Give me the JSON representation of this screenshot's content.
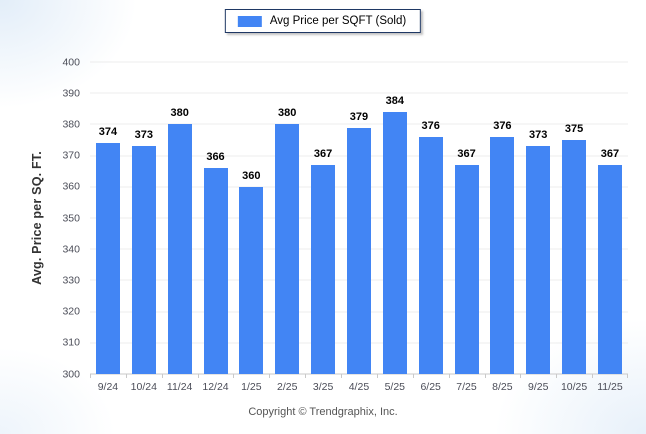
{
  "legend": {
    "label": "Avg Price per SQFT (Sold)",
    "swatch_color": "#4285f4",
    "border_color": "#1f3864"
  },
  "footer": {
    "text": "Copyright © Trendgraphix, Inc."
  },
  "colors": {
    "bar": "#4285f4",
    "gridline": "#ececec",
    "axis_line": "#c9c9c9",
    "tick_text": "#4b4d58",
    "value_text": "#000000"
  },
  "chart_data": {
    "type": "bar",
    "title": "",
    "xlabel": "",
    "ylabel": "Avg. Price per SQ. FT.",
    "categories": [
      "9/24",
      "10/24",
      "11/24",
      "12/24",
      "1/25",
      "2/25",
      "3/25",
      "4/25",
      "5/25",
      "6/25",
      "7/25",
      "8/25",
      "9/25",
      "10/25",
      "11/25"
    ],
    "series": [
      {
        "name": "Avg Price per SQFT (Sold)",
        "values": [
          374,
          373,
          380,
          366,
          360,
          380,
          367,
          379,
          384,
          376,
          367,
          376,
          373,
          375,
          367
        ]
      }
    ],
    "ylim": [
      300,
      400
    ],
    "yticks": [
      300,
      310,
      320,
      330,
      340,
      350,
      360,
      370,
      380,
      390,
      400
    ],
    "grid": "horizontal",
    "legend_position": "top-center",
    "value_labels": true
  }
}
